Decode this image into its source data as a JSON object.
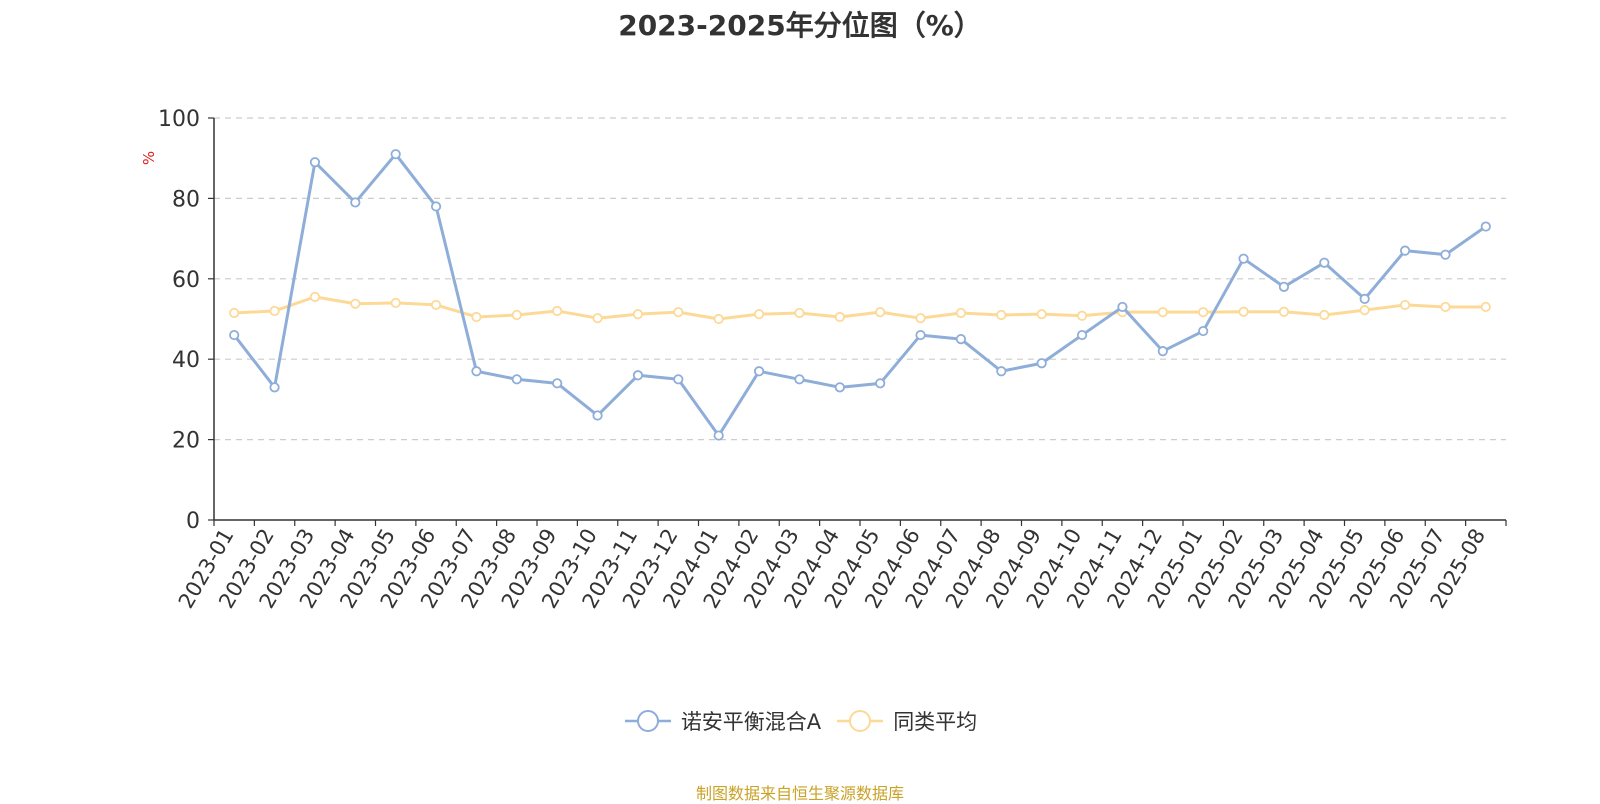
{
  "colors": {
    "fund": "#8eadd8",
    "average": "#fdd998",
    "grid": "#cccccc",
    "axis": "#333333",
    "unit": "#e02020",
    "source": "#c9a227"
  },
  "chart_data": {
    "type": "line",
    "title": "2023-2025年分位图（%）",
    "ylabel": "%",
    "ylim": [
      0,
      100
    ],
    "yticks": [
      0,
      20,
      40,
      60,
      80,
      100
    ],
    "grid": true,
    "legend_position": "bottom-center",
    "categories": [
      "2023-01",
      "2023-02",
      "2023-03",
      "2023-04",
      "2023-05",
      "2023-06",
      "2023-07",
      "2023-08",
      "2023-09",
      "2023-10",
      "2023-11",
      "2023-12",
      "2024-01",
      "2024-02",
      "2024-03",
      "2024-04",
      "2024-05",
      "2024-06",
      "2024-07",
      "2024-08",
      "2024-09",
      "2024-10",
      "2024-11",
      "2024-12",
      "2025-01",
      "2025-02",
      "2025-03",
      "2025-04",
      "2025-05",
      "2025-06",
      "2025-07",
      "2025-08"
    ],
    "series": [
      {
        "name": "诺安平衡混合A",
        "color_key": "fund",
        "values": [
          46,
          33,
          89,
          79,
          91,
          78,
          37,
          35,
          34,
          26,
          36,
          35,
          21,
          37,
          35,
          33,
          34,
          46,
          45,
          37,
          39,
          46,
          53,
          42,
          47,
          65,
          58,
          64,
          55,
          67,
          66,
          73
        ]
      },
      {
        "name": "同类平均",
        "color_key": "average",
        "values": [
          51.5,
          52,
          55.5,
          53.8,
          54,
          53.5,
          50.5,
          51,
          52,
          50.2,
          51.2,
          51.7,
          50,
          51.2,
          51.5,
          50.5,
          51.7,
          50.2,
          51.5,
          51,
          51.2,
          50.8,
          51.7,
          51.7,
          51.7,
          51.8,
          51.8,
          51,
          52.2,
          53.5,
          53,
          53
        ]
      }
    ]
  },
  "source_text": "制图数据来自恒生聚源数据库"
}
